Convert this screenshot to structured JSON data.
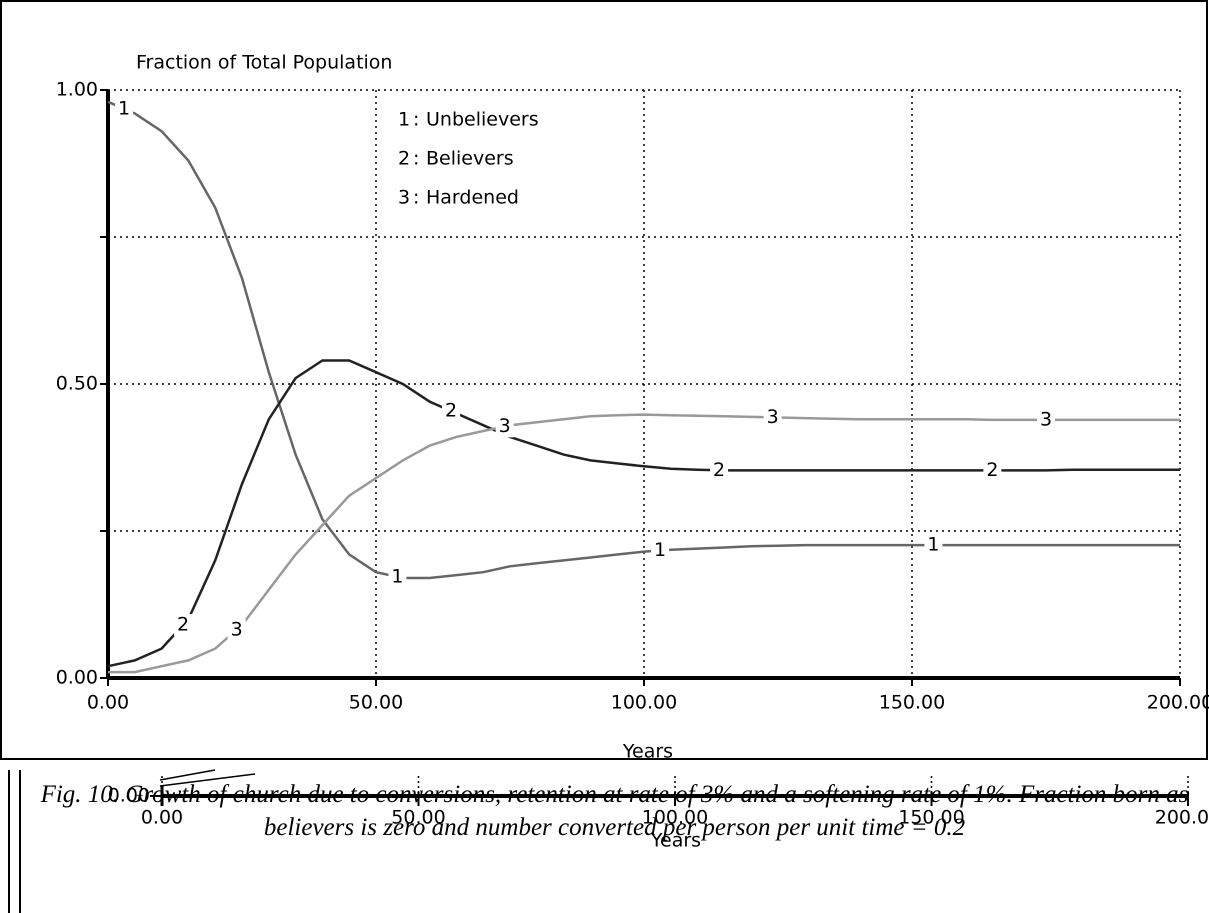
{
  "chart_data": [
    {
      "type": "line",
      "title": "Fraction of Total Population",
      "xlabel": "Years",
      "legend_separator": ":",
      "x": [
        0,
        5,
        10,
        15,
        20,
        25,
        30,
        35,
        40,
        45,
        50,
        55,
        60,
        65,
        70,
        75,
        80,
        85,
        90,
        95,
        100,
        105,
        110,
        115,
        120,
        125,
        130,
        135,
        140,
        145,
        150,
        155,
        160,
        165,
        170,
        175,
        180,
        185,
        190,
        195,
        200
      ],
      "series": [
        {
          "name": "Unbelievers",
          "marker_label": "1",
          "color": "#666666",
          "marker_x": [
            3,
            54,
            103,
            154
          ],
          "values": [
            0.98,
            0.96,
            0.93,
            0.88,
            0.8,
            0.68,
            0.52,
            0.38,
            0.27,
            0.21,
            0.18,
            0.17,
            0.17,
            0.175,
            0.18,
            0.19,
            0.195,
            0.2,
            0.205,
            0.21,
            0.215,
            0.218,
            0.22,
            0.222,
            0.224,
            0.225,
            0.226,
            0.226,
            0.226,
            0.226,
            0.226,
            0.226,
            0.226,
            0.226,
            0.226,
            0.226,
            0.226,
            0.226,
            0.226,
            0.226,
            0.226
          ]
        },
        {
          "name": "Believers",
          "marker_label": "2",
          "color": "#222222",
          "marker_x": [
            14,
            64,
            114,
            165
          ],
          "values": [
            0.02,
            0.03,
            0.05,
            0.1,
            0.2,
            0.33,
            0.44,
            0.51,
            0.54,
            0.54,
            0.52,
            0.5,
            0.47,
            0.45,
            0.43,
            0.41,
            0.395,
            0.38,
            0.37,
            0.365,
            0.36,
            0.356,
            0.354,
            0.353,
            0.353,
            0.353,
            0.353,
            0.353,
            0.353,
            0.353,
            0.353,
            0.353,
            0.353,
            0.353,
            0.353,
            0.353,
            0.354,
            0.354,
            0.354,
            0.354,
            0.354
          ]
        },
        {
          "name": "Hardened",
          "marker_label": "3",
          "color": "#999999",
          "marker_x": [
            24,
            74,
            124,
            175
          ],
          "values": [
            0.01,
            0.01,
            0.02,
            0.03,
            0.05,
            0.09,
            0.15,
            0.21,
            0.26,
            0.31,
            0.34,
            0.37,
            0.395,
            0.41,
            0.42,
            0.43,
            0.435,
            0.44,
            0.445,
            0.447,
            0.448,
            0.447,
            0.446,
            0.445,
            0.444,
            0.443,
            0.442,
            0.441,
            0.44,
            0.44,
            0.44,
            0.44,
            0.44,
            0.439,
            0.439,
            0.439,
            0.439,
            0.439,
            0.439,
            0.439,
            0.439
          ]
        }
      ],
      "xlim": [
        0,
        200
      ],
      "ylim": [
        0,
        1
      ],
      "xticks": [
        {
          "value": 0,
          "label": "0.00"
        },
        {
          "value": 50,
          "label": "50.00"
        },
        {
          "value": 100,
          "label": "100.00"
        },
        {
          "value": 150,
          "label": "150.00"
        },
        {
          "value": 200,
          "label": "200.00"
        }
      ],
      "yticks": [
        {
          "value": 0,
          "label": "0.00"
        },
        {
          "value": 0.25,
          "label": null
        },
        {
          "value": 0.5,
          "label": "0.50"
        },
        {
          "value": 0.75,
          "label": null
        },
        {
          "value": 1,
          "label": "1.00"
        }
      ],
      "grid": true
    },
    {
      "type": "axis",
      "xlabel": "Years",
      "xlim": [
        0,
        200
      ],
      "xticks": [
        {
          "value": 0,
          "label": "0.00"
        },
        {
          "value": 50,
          "label": "50.00"
        },
        {
          "value": 100,
          "label": "100.00"
        },
        {
          "value": 150,
          "label": "150.00"
        },
        {
          "value": 200,
          "label": "200.00"
        }
      ],
      "yticks": [
        {
          "value": 0,
          "label": "0.00"
        }
      ]
    }
  ],
  "caption": "Fig. 10. Growth of church due to conversions, retention at rate of 3% and a softening rate of 1%. Fraction born as believers is zero and number converted per person per unit time = 0.2"
}
